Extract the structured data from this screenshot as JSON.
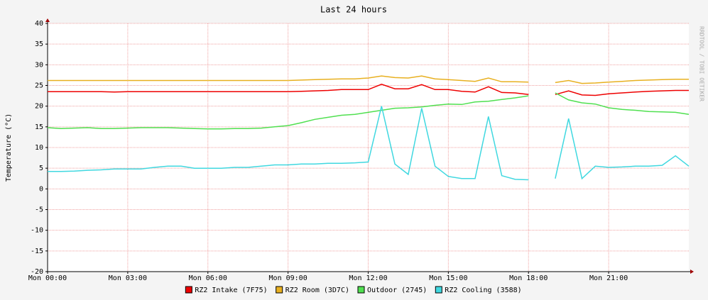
{
  "chart_data": {
    "type": "line",
    "title": "Last 24 hours",
    "y_label": "Temperature (°C)",
    "watermark": "RRDTOOL / TOBI OETIKER",
    "grid": true,
    "legend": "bottom",
    "xlim": [
      0,
      24
    ],
    "xticks": [
      {
        "value": 0,
        "label": "Mon 00:00"
      },
      {
        "value": 3,
        "label": "Mon 03:00"
      },
      {
        "value": 6,
        "label": "Mon 06:00"
      },
      {
        "value": 9,
        "label": "Mon 09:00"
      },
      {
        "value": 12,
        "label": "Mon 12:00"
      },
      {
        "value": 15,
        "label": "Mon 15:00"
      },
      {
        "value": 18,
        "label": "Mon 18:00"
      },
      {
        "value": 21,
        "label": "Mon 21:00"
      }
    ],
    "ylim": [
      -20,
      40
    ],
    "yticks": [
      -20,
      -15,
      -10,
      -5,
      0,
      5,
      10,
      15,
      20,
      25,
      30,
      35,
      40
    ],
    "x": [
      0,
      0.5,
      1,
      1.5,
      2,
      2.5,
      3,
      3.5,
      4,
      4.5,
      5,
      5.5,
      6,
      6.5,
      7,
      7.5,
      8,
      8.5,
      9,
      9.5,
      10,
      10.5,
      11,
      11.5,
      12,
      12.5,
      13,
      13.5,
      14,
      14.5,
      15,
      15.5,
      16,
      16.5,
      17,
      17.5,
      18,
      18.5,
      19,
      19.5,
      20,
      20.5,
      21,
      21.5,
      22,
      22.5,
      23,
      23.5,
      24
    ],
    "series": [
      {
        "name": "RZ2 Intake (7F75)",
        "color": "#ee0000",
        "values": [
          23.5,
          23.5,
          23.5,
          23.5,
          23.5,
          23.4,
          23.5,
          23.5,
          23.5,
          23.5,
          23.5,
          23.5,
          23.5,
          23.5,
          23.5,
          23.5,
          23.5,
          23.5,
          23.5,
          23.6,
          23.7,
          23.8,
          24.0,
          24.0,
          24.0,
          25.3,
          24.2,
          24.2,
          25.2,
          24.0,
          24.0,
          23.6,
          23.4,
          24.7,
          23.3,
          23.2,
          22.8,
          null,
          22.8,
          23.7,
          22.7,
          22.6,
          23.0,
          23.2,
          23.4,
          23.6,
          23.7,
          23.8,
          23.8
        ]
      },
      {
        "name": "RZ2 Room (3D7C)",
        "color": "#e8b020",
        "values": [
          26.2,
          26.2,
          26.2,
          26.2,
          26.2,
          26.2,
          26.2,
          26.2,
          26.2,
          26.2,
          26.2,
          26.2,
          26.2,
          26.2,
          26.2,
          26.2,
          26.2,
          26.2,
          26.2,
          26.3,
          26.4,
          26.5,
          26.6,
          26.6,
          26.8,
          27.3,
          26.9,
          26.8,
          27.3,
          26.6,
          26.4,
          26.2,
          26.0,
          26.8,
          25.9,
          25.9,
          25.8,
          null,
          25.7,
          26.2,
          25.5,
          25.6,
          25.8,
          26.0,
          26.2,
          26.3,
          26.4,
          26.5,
          26.5
        ]
      },
      {
        "name": "Outdoor (2745)",
        "color": "#50e050",
        "values": [
          14.8,
          14.6,
          14.7,
          14.8,
          14.6,
          14.6,
          14.7,
          14.8,
          14.8,
          14.8,
          14.7,
          14.6,
          14.5,
          14.5,
          14.6,
          14.6,
          14.7,
          15.0,
          15.3,
          16.0,
          16.8,
          17.3,
          17.8,
          18.0,
          18.5,
          19.0,
          19.5,
          19.6,
          19.8,
          20.2,
          20.5,
          20.4,
          21.0,
          21.2,
          21.6,
          22.0,
          22.5,
          null,
          23.2,
          21.5,
          20.8,
          20.5,
          19.6,
          19.2,
          19.0,
          18.7,
          18.6,
          18.5,
          18.0
        ]
      },
      {
        "name": "RZ2 Cooling (3588)",
        "color": "#40d8e0",
        "values": [
          4.2,
          4.2,
          4.3,
          4.5,
          4.6,
          4.8,
          4.8,
          4.8,
          5.2,
          5.5,
          5.5,
          5.0,
          5.0,
          5.0,
          5.2,
          5.2,
          5.5,
          5.8,
          5.8,
          6.0,
          6.0,
          6.2,
          6.2,
          6.3,
          6.5,
          20.0,
          6.0,
          3.5,
          19.5,
          5.5,
          3.0,
          2.5,
          2.5,
          17.5,
          3.2,
          2.3,
          2.2,
          null,
          2.5,
          17.0,
          2.5,
          5.5,
          5.2,
          5.3,
          5.5,
          5.5,
          5.7,
          8.0,
          5.5
        ]
      }
    ]
  }
}
